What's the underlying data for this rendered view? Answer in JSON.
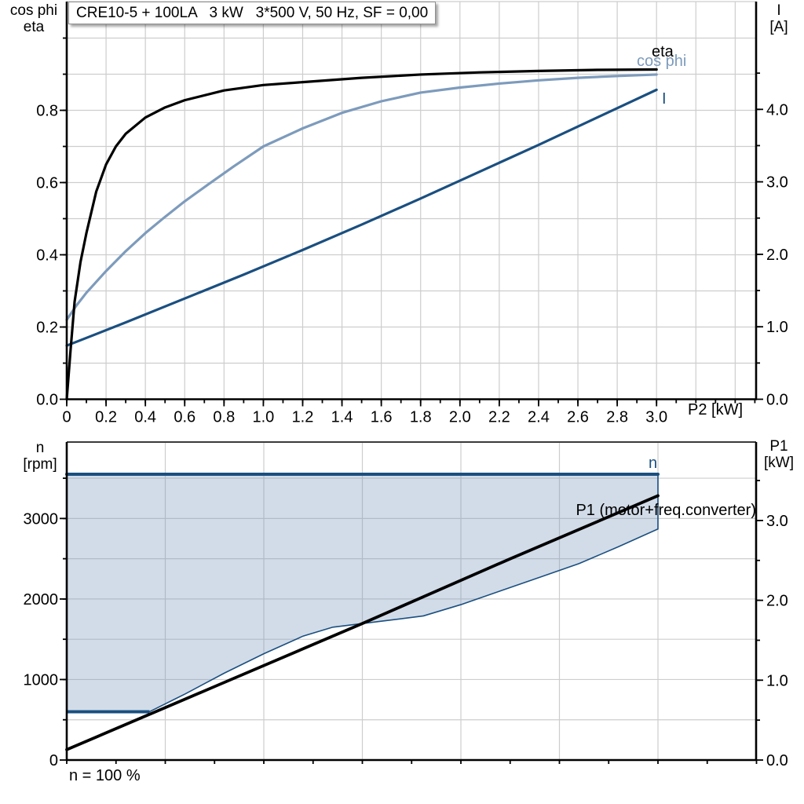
{
  "colors": {
    "axis": "#000000",
    "grid": "#cdcdcd",
    "top_edge_bottom_chart": "#3a3a3a",
    "dark_blue": "#1a4f80",
    "light_blue": "#7d9bbc",
    "area_fill": "#7d9bbc",
    "text": "#000000",
    "title_border": "#8f8f8f",
    "background": "#ffffff"
  },
  "chart_data": [
    {
      "id": "top",
      "type": "line",
      "title": "CRE10-5 + 100LA   3 kW   3*500 V, 50 Hz, SF = 0,00",
      "x": {
        "label": "P2 [kW]",
        "min": 0,
        "max": 3.51,
        "tick_values": [
          0,
          0.2,
          0.4,
          0.6,
          0.8,
          1.0,
          1.2,
          1.4,
          1.6,
          1.8,
          2.0,
          2.2,
          2.4,
          2.6,
          2.8,
          3.0
        ],
        "tick_labels": [
          "0",
          "0.2",
          "0.4",
          "0.6",
          "0.8",
          "1.0",
          "1.2",
          "1.4",
          "1.6",
          "1.8",
          "2.0",
          "2.2",
          "2.4",
          "2.6",
          "2.8",
          "3.0"
        ],
        "grid_step": 0.2,
        "grid_max": 3.4,
        "minor_step": 0.1,
        "minor_max": 3.5
      },
      "y_left": {
        "label1": "cos phi",
        "label2": "eta",
        "min": 0,
        "max": 1.1,
        "tick_values": [
          0.0,
          0.2,
          0.4,
          0.6,
          0.8
        ],
        "tick_labels": [
          "0.0",
          "0.2",
          "0.4",
          "0.6",
          "0.8"
        ],
        "grid_step": 0.1,
        "grid_max": 1.0,
        "minor_step": 0.1,
        "minor_max": 1.0,
        "major_step": 0.2
      },
      "y_right": {
        "label1": "I",
        "label2": "[A]",
        "min": 0,
        "max": 4.9,
        "tick_values": [
          0.0,
          1.0,
          2.0,
          3.0,
          4.0
        ],
        "tick_labels": [
          "0.0",
          "1.0",
          "2.0",
          "3.0",
          "4.0"
        ],
        "minor_step": 0.5,
        "minor_max": 4.5,
        "major_step": 1.0
      },
      "grid": true,
      "series": [
        {
          "name": "I",
          "label": "I",
          "axis": "right",
          "color": "#1a4f80",
          "width": 3.2,
          "points": [
            [
              0,
              0.74
            ],
            [
              0.3,
              1.06
            ],
            [
              0.6,
              1.39
            ],
            [
              0.9,
              1.72
            ],
            [
              1.2,
              2.06
            ],
            [
              1.5,
              2.41
            ],
            [
              1.8,
              2.77
            ],
            [
              2.1,
              3.14
            ],
            [
              2.4,
              3.51
            ],
            [
              2.7,
              3.89
            ],
            [
              3.0,
              4.27
            ]
          ]
        },
        {
          "name": "cos phi",
          "label": "cos phi",
          "axis": "left",
          "color": "#7d9bbc",
          "width": 3.2,
          "points": [
            [
              0,
              0.22
            ],
            [
              0.05,
              0.26
            ],
            [
              0.1,
              0.295
            ],
            [
              0.2,
              0.355
            ],
            [
              0.3,
              0.41
            ],
            [
              0.4,
              0.46
            ],
            [
              0.5,
              0.505
            ],
            [
              0.6,
              0.548
            ],
            [
              0.72,
              0.595
            ],
            [
              0.85,
              0.645
            ],
            [
              1.0,
              0.7
            ],
            [
              1.2,
              0.75
            ],
            [
              1.4,
              0.793
            ],
            [
              1.6,
              0.825
            ],
            [
              1.8,
              0.849
            ],
            [
              2.0,
              0.863
            ],
            [
              2.2,
              0.874
            ],
            [
              2.4,
              0.883
            ],
            [
              2.6,
              0.89
            ],
            [
              2.8,
              0.895
            ],
            [
              3.0,
              0.899
            ]
          ]
        },
        {
          "name": "eta",
          "label": "eta",
          "axis": "left",
          "color": "#000000",
          "width": 3.2,
          "points": [
            [
              0,
              0
            ],
            [
              0.02,
              0.14
            ],
            [
              0.04,
              0.27
            ],
            [
              0.07,
              0.38
            ],
            [
              0.1,
              0.46
            ],
            [
              0.15,
              0.575
            ],
            [
              0.2,
              0.65
            ],
            [
              0.25,
              0.7
            ],
            [
              0.3,
              0.735
            ],
            [
              0.4,
              0.78
            ],
            [
              0.5,
              0.808
            ],
            [
              0.6,
              0.828
            ],
            [
              0.8,
              0.855
            ],
            [
              1.0,
              0.87
            ],
            [
              1.2,
              0.878
            ],
            [
              1.5,
              0.89
            ],
            [
              1.8,
              0.899
            ],
            [
              2.1,
              0.905
            ],
            [
              2.4,
              0.909
            ],
            [
              2.7,
              0.912
            ],
            [
              3.0,
              0.913
            ]
          ]
        }
      ]
    },
    {
      "id": "bottom",
      "type": "line",
      "footer": "n = 100 %",
      "x": {
        "label": "",
        "min": 0,
        "max": 3.5,
        "tick_values": [],
        "tick_labels": [],
        "grid_step": 0.5,
        "grid_max": 3.0,
        "minor_step": 0.25,
        "minor_max": 3.5
      },
      "y_left": {
        "label1": "n",
        "label2": "[rpm]",
        "min": 0,
        "max": 3950,
        "tick_values": [
          0,
          1000,
          2000,
          3000
        ],
        "tick_labels": [
          "0",
          "1000",
          "2000",
          "3000"
        ],
        "grid_step": 500,
        "grid_max": 3500,
        "minor_step": 500,
        "minor_max": 3500,
        "major_step": 1000
      },
      "y_right": {
        "label1": "P1",
        "label2": "[kW]",
        "min": 0,
        "max": 3.98,
        "tick_values": [
          0.0,
          1.0,
          2.0,
          3.0
        ],
        "tick_labels": [
          "0.0",
          "1.0",
          "2.0",
          "3.0"
        ],
        "minor_step": 0.5,
        "minor_max": 3.5,
        "major_step": 1.0
      },
      "grid": true,
      "area": {
        "fill": "#7d9bbc",
        "opacity": 0.35,
        "edge_color": "#1a4f80",
        "edge_width": 1.6
      },
      "series": [
        {
          "name": "envelope",
          "label": "",
          "axis": "left",
          "color": "#1a4f80",
          "width": 1.6,
          "role": "area_lower",
          "points": [
            [
              0,
              600
            ],
            [
              0.42,
              600
            ],
            [
              0.6,
              820
            ],
            [
              0.8,
              1080
            ],
            [
              1.0,
              1320
            ],
            [
              1.2,
              1540
            ],
            [
              1.35,
              1650
            ],
            [
              1.6,
              1725
            ],
            [
              1.81,
              1790
            ],
            [
              2.0,
              1930
            ],
            [
              2.2,
              2100
            ],
            [
              2.4,
              2270
            ],
            [
              2.6,
              2440
            ],
            [
              2.8,
              2650
            ],
            [
              3.0,
              2870
            ]
          ]
        },
        {
          "name": "P1 (motor+freq.converter)",
          "label": "P1 (motor+freq.converter)",
          "axis": "right",
          "color": "#000000",
          "width": 3.8,
          "points": [
            [
              0,
              0.13
            ],
            [
              0.75,
              0.92
            ],
            [
              1.5,
              1.71
            ],
            [
              2.25,
              2.52
            ],
            [
              3.0,
              3.31
            ]
          ]
        },
        {
          "name": "n",
          "label": "n",
          "axis": "left",
          "color": "#1a4f80",
          "width": 4,
          "role": "area_upper",
          "points": [
            [
              0,
              3550
            ],
            [
              3.0,
              3550
            ]
          ]
        }
      ]
    }
  ]
}
